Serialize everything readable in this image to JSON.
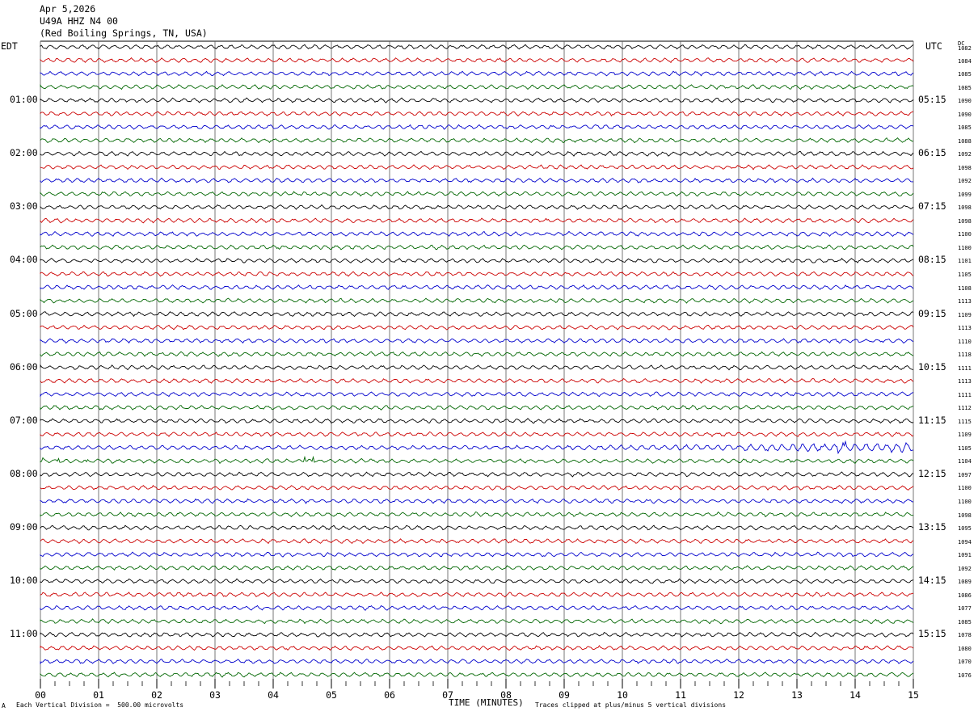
{
  "header": {
    "date": "Apr 5,2026",
    "station": "U49A HHZ N4 00",
    "location": "(Red Boiling Springs, TN, USA)"
  },
  "left_tz": "EDT",
  "right_tz": "UTC",
  "dc_header": "DC",
  "footer": {
    "scale": "Each Vertical Division =  500.00 microvolts",
    "xlabel": "TIME (MINUTES)",
    "clip": "Traces clipped at plus/minus 5 vertical divisions",
    "corner": "A"
  },
  "colors": [
    "#000000",
    "#cc0000",
    "#0000cc",
    "#006600"
  ],
  "chart_data": {
    "type": "line",
    "title": "",
    "xlabel": "TIME (MINUTES)",
    "x_range": [
      0,
      15
    ],
    "x_ticks": [
      "00",
      "01",
      "02",
      "03",
      "04",
      "05",
      "06",
      "07",
      "08",
      "09",
      "10",
      "11",
      "12",
      "13",
      "14",
      "15"
    ],
    "rows": 48,
    "minutes_per_row": 15,
    "left_hour_labels": [
      "01:00",
      "02:00",
      "03:00",
      "04:00",
      "05:00",
      "06:00",
      "07:00",
      "08:00",
      "09:00",
      "10:00",
      "11:00"
    ],
    "right_hour_labels": [
      "05:15",
      "06:15",
      "07:15",
      "08:15",
      "09:15",
      "10:15",
      "11:15",
      "12:15",
      "13:15",
      "14:15",
      "15:15"
    ],
    "dc_offsets": [
      1082,
      1084,
      1085,
      1085,
      1090,
      1090,
      1085,
      1088,
      1092,
      1098,
      1092,
      1099,
      1098,
      1098,
      1100,
      1100,
      1101,
      1105,
      1108,
      1113,
      1109,
      1113,
      1110,
      1118,
      1111,
      1113,
      1111,
      1112,
      1115,
      1109,
      1105,
      1104,
      1097,
      1100,
      1100,
      1098,
      1095,
      1094,
      1091,
      1092,
      1089,
      1086,
      1077,
      1085,
      1078,
      1080,
      1070,
      1076
    ],
    "grid": "vertical minute lines"
  }
}
